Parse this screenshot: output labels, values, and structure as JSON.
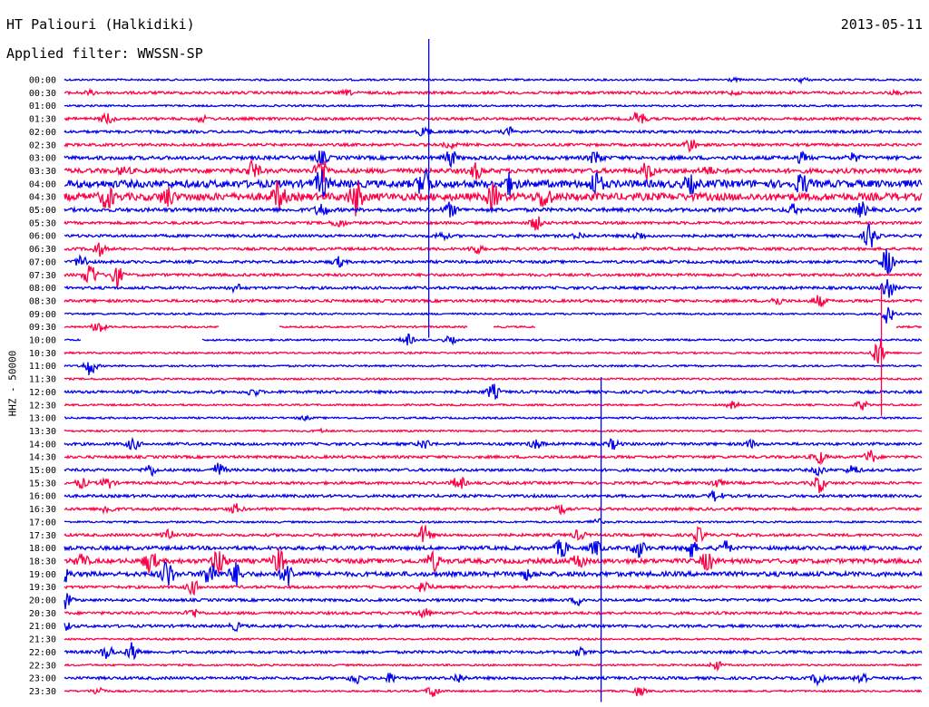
{
  "header": {
    "station": "HT Paliouri (Halkidiki)",
    "filter": "Applied filter: WWSSN-SP",
    "date": "2013-05-11",
    "channel": "HHZ - 50000"
  },
  "colors": {
    "blue": "#0000ee",
    "red": "#ff0044"
  },
  "chart_data": {
    "type": "line",
    "title": "HT Paliouri (Halkidiki)",
    "subtitle": "Applied filter: WWSSN-SP",
    "ylabel": "HHZ - 50000",
    "traces": [
      {
        "label": "00:00",
        "color": "blue",
        "level": 0.2,
        "bursts": [
          [
            0.86,
            0.5
          ],
          [
            0.78,
            0.3
          ]
        ]
      },
      {
        "label": "00:30",
        "color": "red",
        "level": 0.3,
        "bursts": [
          [
            0.03,
            0.4
          ],
          [
            0.33,
            0.4
          ],
          [
            0.78,
            0.3
          ],
          [
            0.97,
            0.3
          ]
        ]
      },
      {
        "label": "01:00",
        "color": "blue",
        "level": 0.2,
        "bursts": []
      },
      {
        "label": "01:30",
        "color": "red",
        "level": 0.3,
        "bursts": [
          [
            0.05,
            1.2
          ],
          [
            0.16,
            0.6
          ],
          [
            0.67,
            1.8
          ]
        ]
      },
      {
        "label": "02:00",
        "color": "blue",
        "level": 0.3,
        "bursts": [
          [
            0.52,
            0.8
          ],
          [
            0.42,
            1.0
          ]
        ]
      },
      {
        "label": "02:30",
        "color": "red",
        "level": 0.3,
        "bursts": [
          [
            0.73,
            1.5
          ],
          [
            0.45,
            0.6
          ]
        ]
      },
      {
        "label": "03:00",
        "color": "blue",
        "level": 0.4,
        "bursts": [
          [
            0.3,
            1.4
          ],
          [
            0.45,
            1.8
          ],
          [
            0.62,
            1.5
          ],
          [
            0.86,
            1.0
          ],
          [
            0.92,
            0.8
          ]
        ]
      },
      {
        "label": "03:30",
        "color": "red",
        "level": 0.5,
        "bursts": [
          [
            0.07,
            0.8
          ],
          [
            0.22,
            2.0
          ],
          [
            0.3,
            3.0
          ],
          [
            0.48,
            1.6
          ],
          [
            0.68,
            1.8
          ],
          [
            0.75,
            0.8
          ]
        ]
      },
      {
        "label": "04:00",
        "color": "blue",
        "level": 0.8,
        "bursts": [
          [
            0.3,
            3.0
          ],
          [
            0.42,
            3.5
          ],
          [
            0.52,
            2.0
          ],
          [
            0.62,
            2.5
          ],
          [
            0.73,
            1.6
          ],
          [
            0.86,
            2.0
          ]
        ]
      },
      {
        "label": "04:30",
        "color": "red",
        "level": 0.8,
        "bursts": [
          [
            0.05,
            2.5
          ],
          [
            0.12,
            2.0
          ],
          [
            0.25,
            3.0
          ],
          [
            0.34,
            3.5
          ],
          [
            0.5,
            2.4
          ],
          [
            0.56,
            2.5
          ]
        ]
      },
      {
        "label": "05:00",
        "color": "blue",
        "level": 0.4,
        "bursts": [
          [
            0.3,
            1.5
          ],
          [
            0.45,
            1.5
          ],
          [
            0.85,
            1.0
          ],
          [
            0.93,
            1.5
          ]
        ]
      },
      {
        "label": "05:30",
        "color": "red",
        "level": 0.3,
        "bursts": [
          [
            0.32,
            1.0
          ],
          [
            0.55,
            1.5
          ]
        ]
      },
      {
        "label": "06:00",
        "color": "blue",
        "level": 0.3,
        "bursts": [
          [
            0.44,
            0.8
          ],
          [
            0.6,
            0.6
          ],
          [
            0.67,
            0.8
          ],
          [
            0.94,
            3.0
          ]
        ]
      },
      {
        "label": "06:30",
        "color": "red",
        "level": 0.3,
        "bursts": [
          [
            0.04,
            1.5
          ],
          [
            0.48,
            1.0
          ]
        ]
      },
      {
        "label": "07:00",
        "color": "blue",
        "level": 0.3,
        "bursts": [
          [
            0.02,
            1.5
          ],
          [
            0.32,
            1.0
          ],
          [
            0.96,
            3.0
          ]
        ]
      },
      {
        "label": "07:30",
        "color": "red",
        "level": 0.3,
        "bursts": [
          [
            0.03,
            3.0
          ],
          [
            0.06,
            2.5
          ]
        ]
      },
      {
        "label": "08:00",
        "color": "blue",
        "level": 0.3,
        "bursts": [
          [
            0.2,
            0.8
          ],
          [
            0.96,
            2.5
          ]
        ]
      },
      {
        "label": "08:30",
        "color": "red",
        "level": 0.3,
        "bursts": [
          [
            0.83,
            1.0
          ],
          [
            0.88,
            1.2
          ]
        ]
      },
      {
        "label": "09:00",
        "color": "blue",
        "level": 0.2,
        "bursts": [
          [
            0.96,
            2.0
          ]
        ]
      },
      {
        "label": "09:30",
        "color": "red",
        "level": 0.2,
        "gaps": [
          [
            0.18,
            0.25
          ],
          [
            0.47,
            0.5
          ],
          [
            0.55,
            0.97
          ]
        ],
        "bursts": [
          [
            0.04,
            1.5
          ]
        ]
      },
      {
        "label": "10:00",
        "color": "blue",
        "level": 0.2,
        "gaps": [
          [
            0.02,
            0.16
          ]
        ],
        "bursts": [
          [
            0.4,
            1.2
          ],
          [
            0.45,
            0.8
          ]
        ]
      },
      {
        "label": "10:30",
        "color": "red",
        "level": 0.2,
        "bursts": [
          [
            0.95,
            3.0
          ]
        ]
      },
      {
        "label": "11:00",
        "color": "blue",
        "level": 0.2,
        "bursts": [
          [
            0.03,
            2.0
          ]
        ]
      },
      {
        "label": "11:30",
        "color": "red",
        "level": 0.2,
        "bursts": []
      },
      {
        "label": "12:00",
        "color": "blue",
        "level": 0.3,
        "bursts": [
          [
            0.5,
            1.6
          ],
          [
            0.22,
            0.8
          ]
        ]
      },
      {
        "label": "12:30",
        "color": "red",
        "level": 0.2,
        "bursts": [
          [
            0.93,
            1.0
          ],
          [
            0.78,
            0.8
          ]
        ]
      },
      {
        "label": "13:00",
        "color": "blue",
        "level": 0.2,
        "bursts": [
          [
            0.28,
            0.4
          ]
        ]
      },
      {
        "label": "13:30",
        "color": "red",
        "level": 0.2,
        "bursts": [
          [
            0.3,
            0.3
          ]
        ]
      },
      {
        "label": "14:00",
        "color": "blue",
        "level": 0.3,
        "bursts": [
          [
            0.08,
            1.2
          ],
          [
            0.42,
            1.0
          ],
          [
            0.55,
            1.0
          ],
          [
            0.64,
            1.0
          ],
          [
            0.8,
            0.8
          ]
        ]
      },
      {
        "label": "14:30",
        "color": "red",
        "level": 0.3,
        "bursts": [
          [
            0.88,
            1.5
          ],
          [
            0.94,
            1.4
          ]
        ]
      },
      {
        "label": "15:00",
        "color": "blue",
        "level": 0.3,
        "bursts": [
          [
            0.1,
            1.2
          ],
          [
            0.18,
            1.5
          ],
          [
            0.88,
            1.0
          ],
          [
            0.92,
            1.0
          ]
        ]
      },
      {
        "label": "15:30",
        "color": "red",
        "level": 0.3,
        "bursts": [
          [
            0.02,
            1.0
          ],
          [
            0.05,
            1.2
          ],
          [
            0.46,
            1.5
          ],
          [
            0.76,
            1.0
          ],
          [
            0.88,
            2.0
          ]
        ]
      },
      {
        "label": "16:00",
        "color": "blue",
        "level": 0.3,
        "bursts": [
          [
            0.76,
            1.2
          ]
        ]
      },
      {
        "label": "16:30",
        "color": "red",
        "level": 0.3,
        "bursts": [
          [
            0.05,
            1.0
          ],
          [
            0.2,
            1.0
          ],
          [
            0.58,
            1.0
          ]
        ]
      },
      {
        "label": "17:00",
        "color": "blue",
        "level": 0.2,
        "bursts": [
          [
            0.62,
            0.8
          ]
        ]
      },
      {
        "label": "17:30",
        "color": "red",
        "level": 0.3,
        "bursts": [
          [
            0.12,
            1.5
          ],
          [
            0.42,
            2.0
          ],
          [
            0.6,
            1.0
          ],
          [
            0.74,
            1.5
          ]
        ]
      },
      {
        "label": "18:00",
        "color": "blue",
        "level": 0.4,
        "bursts": [
          [
            0.58,
            2.0
          ],
          [
            0.62,
            1.5
          ],
          [
            0.67,
            2.0
          ],
          [
            0.73,
            2.0
          ],
          [
            0.77,
            1.5
          ]
        ]
      },
      {
        "label": "18:30",
        "color": "red",
        "level": 0.5,
        "bursts": [
          [
            0.02,
            1.5
          ],
          [
            0.1,
            2.5
          ],
          [
            0.18,
            3.0
          ],
          [
            0.25,
            2.5
          ],
          [
            0.43,
            2.0
          ],
          [
            0.6,
            1.5
          ],
          [
            0.75,
            2.0
          ]
        ]
      },
      {
        "label": "19:00",
        "color": "blue",
        "level": 0.5,
        "bursts": [
          [
            0.0,
            1.5
          ],
          [
            0.12,
            3.0
          ],
          [
            0.17,
            3.0
          ],
          [
            0.2,
            2.5
          ],
          [
            0.26,
            2.5
          ],
          [
            0.54,
            1.0
          ]
        ]
      },
      {
        "label": "19:30",
        "color": "red",
        "level": 0.3,
        "bursts": [
          [
            0.15,
            1.5
          ],
          [
            0.42,
            1.5
          ]
        ]
      },
      {
        "label": "20:00",
        "color": "blue",
        "level": 0.3,
        "bursts": [
          [
            0.0,
            2.0
          ],
          [
            0.6,
            1.0
          ]
        ]
      },
      {
        "label": "20:30",
        "color": "red",
        "level": 0.3,
        "bursts": [
          [
            0.15,
            1.0
          ],
          [
            0.42,
            1.0
          ]
        ]
      },
      {
        "label": "21:00",
        "color": "blue",
        "level": 0.3,
        "bursts": [
          [
            0.0,
            1.0
          ],
          [
            0.2,
            0.8
          ]
        ]
      },
      {
        "label": "21:30",
        "color": "red",
        "level": 0.2,
        "bursts": []
      },
      {
        "label": "22:00",
        "color": "blue",
        "level": 0.3,
        "bursts": [
          [
            0.05,
            1.5
          ],
          [
            0.08,
            2.0
          ],
          [
            0.6,
            0.8
          ]
        ]
      },
      {
        "label": "22:30",
        "color": "red",
        "level": 0.2,
        "bursts": [
          [
            0.76,
            1.0
          ]
        ]
      },
      {
        "label": "23:00",
        "color": "blue",
        "level": 0.3,
        "bursts": [
          [
            0.34,
            1.2
          ],
          [
            0.38,
            1.0
          ],
          [
            0.46,
            1.0
          ],
          [
            0.88,
            1.5
          ],
          [
            0.93,
            1.5
          ]
        ]
      },
      {
        "label": "23:30",
        "color": "red",
        "level": 0.2,
        "bursts": [
          [
            0.04,
            1.0
          ],
          [
            0.43,
            1.5
          ],
          [
            0.67,
            1.0
          ]
        ]
      }
    ],
    "spikes": [
      {
        "x": 0.425,
        "from": "00:00",
        "to": "09:30",
        "color": "blue"
      },
      {
        "x": 0.626,
        "from": "13:00",
        "to": "23:30",
        "color": "blue"
      },
      {
        "x": 0.953,
        "from": "09:30",
        "to": "12:30",
        "color": "red"
      }
    ]
  }
}
